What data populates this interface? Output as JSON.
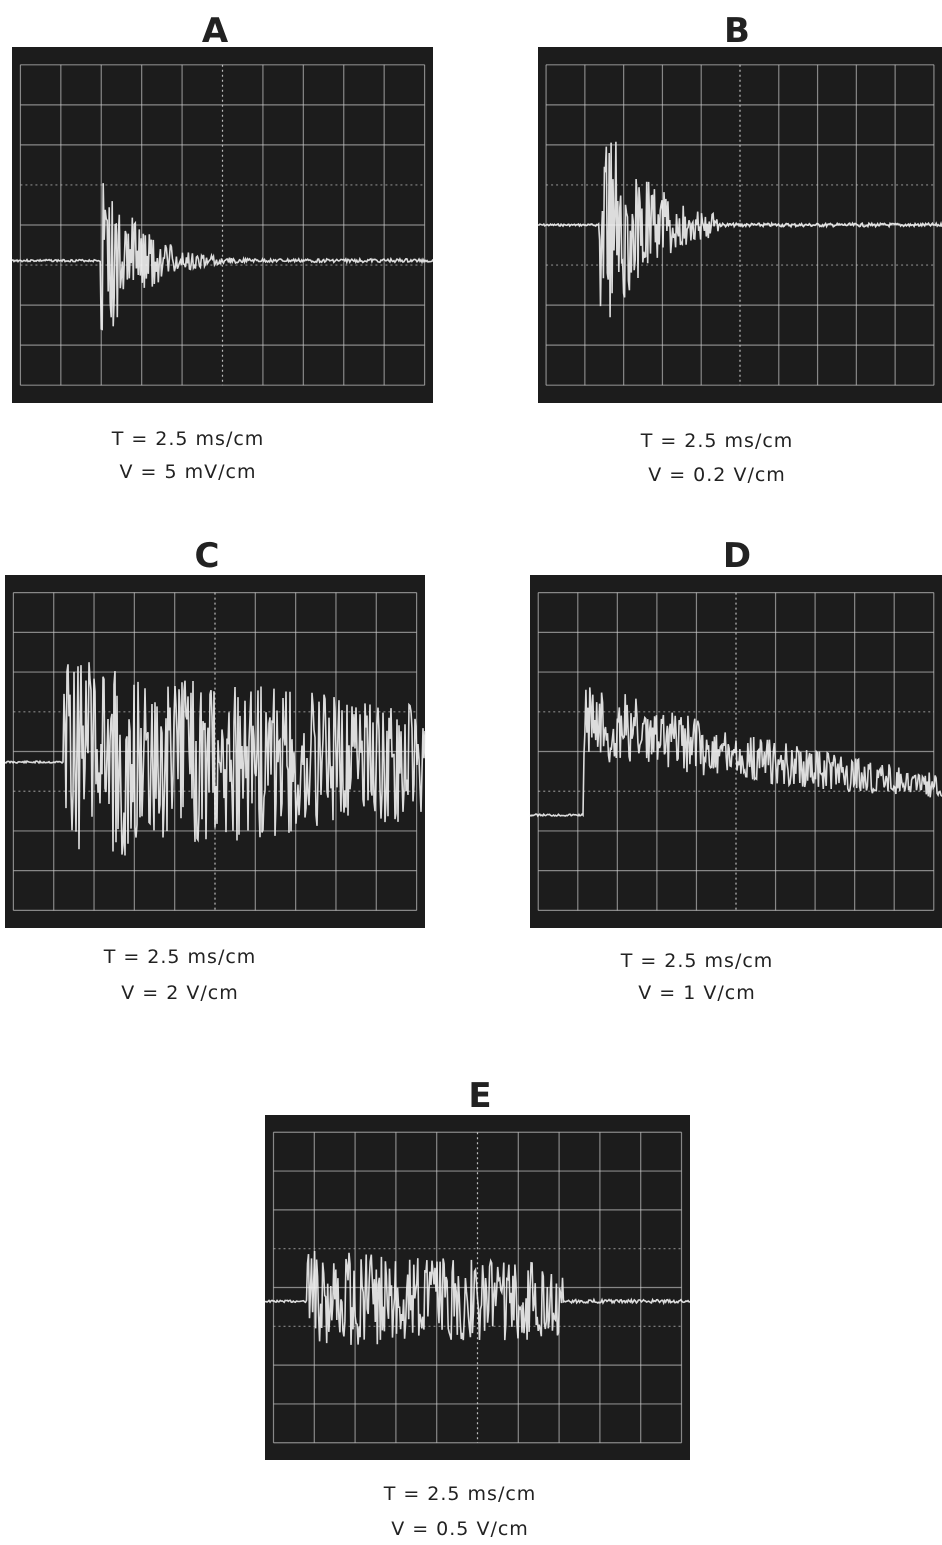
{
  "panels": [
    {
      "label": "A",
      "time_scale": "T = 2.5 ms/cm",
      "voltage_scale": "V =  5 mV/cm"
    },
    {
      "label": "B",
      "time_scale": "T = 2.5 ms/cm",
      "voltage_scale": "V = 0.2  V/cm"
    },
    {
      "label": "C",
      "time_scale": "T = 2.5 ms/cm",
      "voltage_scale": "V =  2  V/cm"
    },
    {
      "label": "D",
      "time_scale": "T = 2.5 ms/cm",
      "voltage_scale": "V =  1  V/cm"
    },
    {
      "label": "E",
      "time_scale": "T = 2.5 ms/cm",
      "voltage_scale": "V = 0.5  V/cm"
    }
  ]
}
